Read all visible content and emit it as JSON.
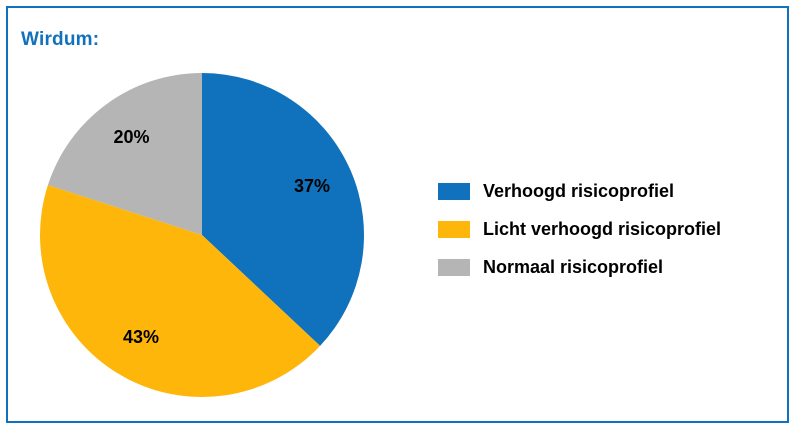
{
  "title": {
    "text": "Wirdum:"
  },
  "colors": {
    "accent": "#1072bc",
    "frame_border": "#1072bc",
    "slice_label_text": "#000000",
    "legend_text": "#000000",
    "background": "#ffffff"
  },
  "chart_data": {
    "type": "pie",
    "title": "Wirdum:",
    "direction": "clockwise",
    "start_angle_deg": 0,
    "legend_position": "right",
    "grid": false,
    "slices": [
      {
        "label": "Verhoogd risicoprofiel",
        "value": 37,
        "display": "37%",
        "color": "#1072bc"
      },
      {
        "label": "Licht verhoogd risicoprofiel",
        "value": 43,
        "display": "43%",
        "color": "#ffb60a"
      },
      {
        "label": "Normaal risicoprofiel",
        "value": 20,
        "display": "20%",
        "color": "#b5b5b5"
      }
    ]
  }
}
